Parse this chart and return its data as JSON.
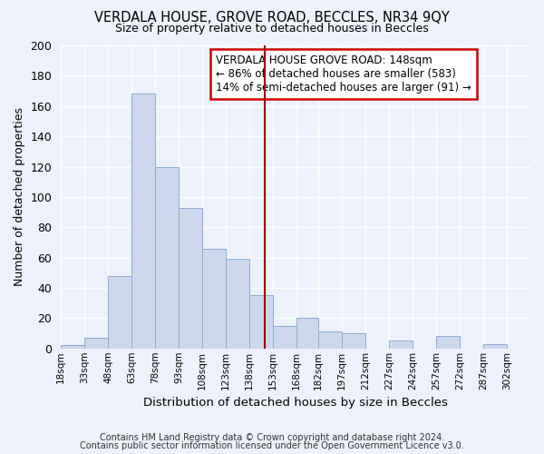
{
  "title": "VERDALA HOUSE, GROVE ROAD, BECCLES, NR34 9QY",
  "subtitle": "Size of property relative to detached houses in Beccles",
  "xlabel": "Distribution of detached houses by size in Beccles",
  "ylabel": "Number of detached properties",
  "bar_color": "#cdd8ee",
  "bar_edge_color": "#8aabd4",
  "background_color": "#edf1fb",
  "grid_color": "#ffffff",
  "vline_x": 148,
  "vline_color": "#990000",
  "annotation_line1": "VERDALA HOUSE GROVE ROAD: 148sqm",
  "annotation_line2": "← 86% of detached houses are smaller (583)",
  "annotation_line3": "14% of semi-detached houses are larger (91) →",
  "annotation_box_color": "#ffffff",
  "annotation_box_edge": "#cc0000",
  "bin_edges": [
    18,
    33,
    48,
    63,
    78,
    93,
    108,
    123,
    138,
    153,
    168,
    182,
    197,
    212,
    227,
    242,
    257,
    272,
    287,
    302,
    317
  ],
  "counts": [
    2,
    7,
    48,
    168,
    120,
    93,
    66,
    59,
    35,
    15,
    20,
    11,
    10,
    0,
    5,
    0,
    8,
    0,
    3,
    0
  ],
  "ylim": [
    0,
    200
  ],
  "yticks": [
    0,
    20,
    40,
    60,
    80,
    100,
    120,
    140,
    160,
    180,
    200
  ],
  "footnote1": "Contains HM Land Registry data © Crown copyright and database right 2024.",
  "footnote2": "Contains public sector information licensed under the Open Government Licence v3.0."
}
